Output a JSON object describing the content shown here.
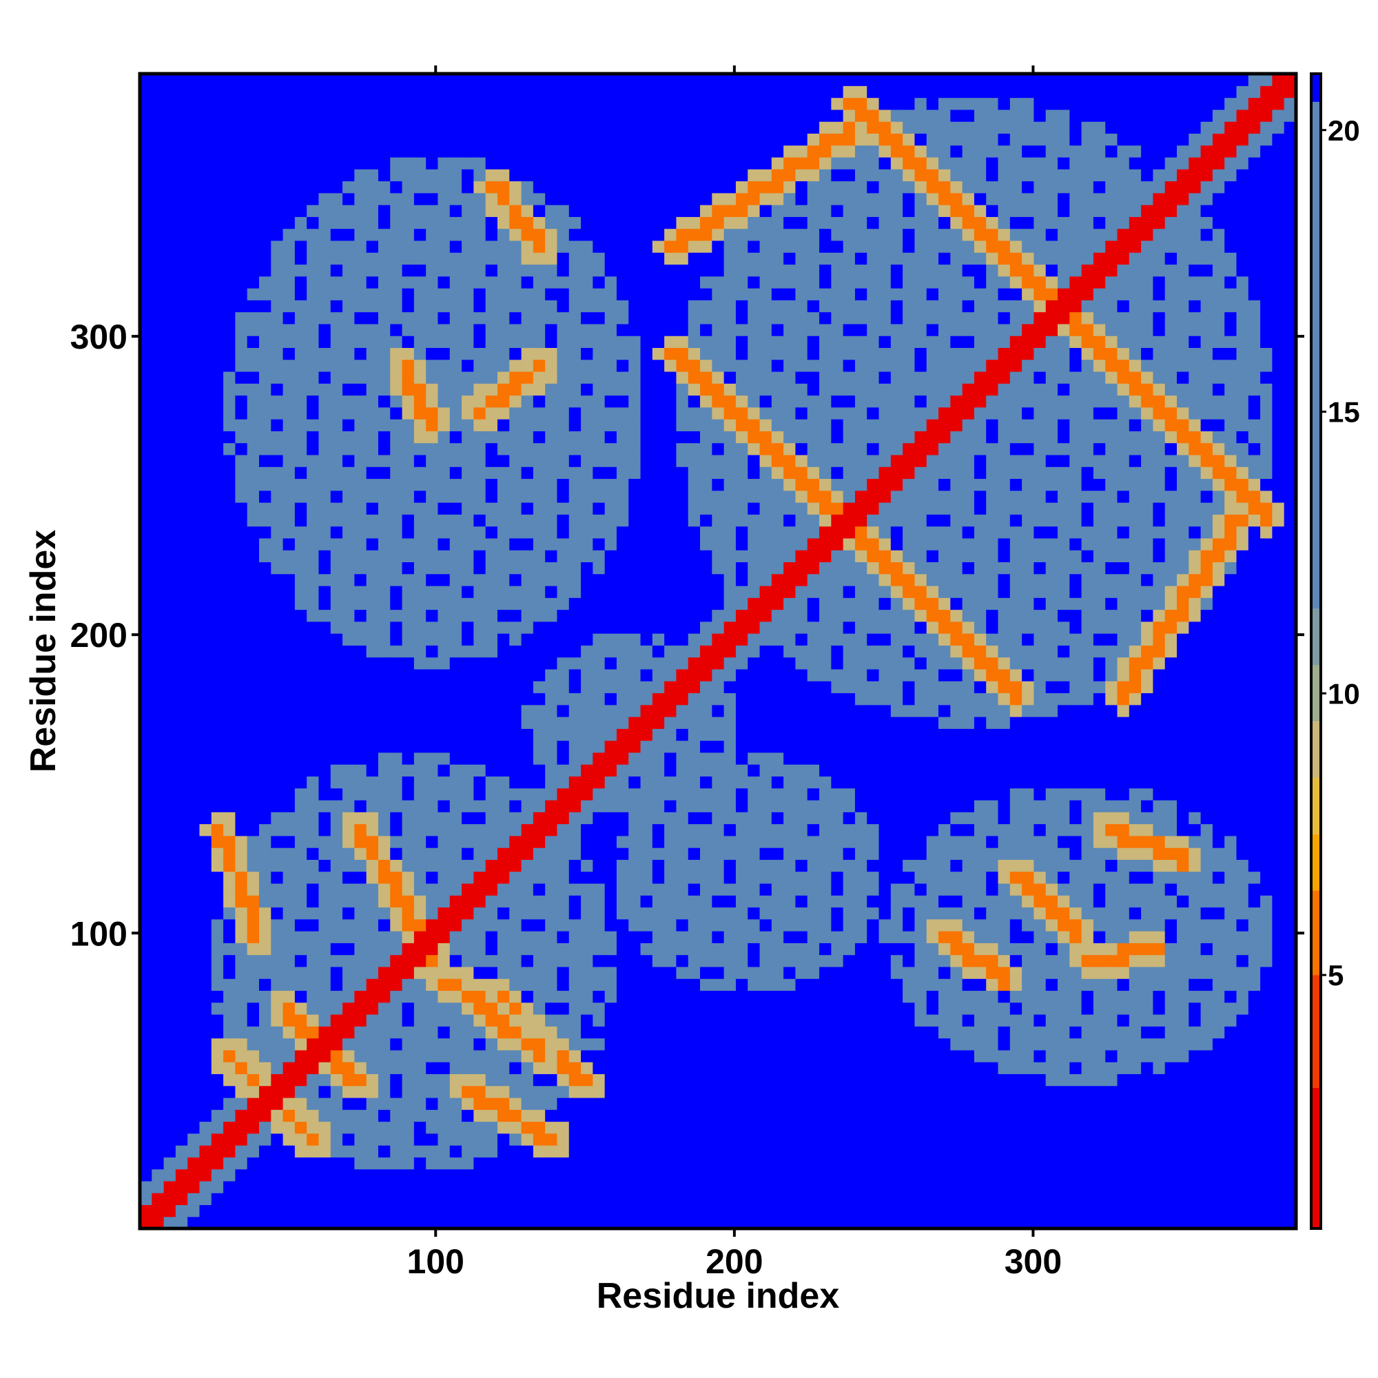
{
  "chart_data": {
    "type": "heatmap",
    "title": "",
    "xlabel": "Residue index",
    "ylabel": "Residue index",
    "xlim": [
      1,
      388
    ],
    "ylim": [
      1,
      388
    ],
    "x_ticks": [
      100,
      200,
      300
    ],
    "y_ticks": [
      100,
      200,
      300
    ],
    "x_tick_labels": [
      "100",
      "200",
      "300"
    ],
    "y_tick_labels": [
      "100",
      "200",
      "300"
    ],
    "grid": false,
    "colorbar": {
      "position": "right",
      "range": [
        0.5,
        21
      ],
      "ticks": [
        5,
        10,
        15,
        20
      ],
      "tick_labels": [
        "5",
        "10",
        "15",
        "20"
      ],
      "colors": [
        {
          "from": 0.5,
          "to": 3.0,
          "color": "#e80000"
        },
        {
          "from": 3.0,
          "to": 5.0,
          "color": "#f23a00"
        },
        {
          "from": 5.0,
          "to": 6.5,
          "color": "#f97400"
        },
        {
          "from": 6.5,
          "to": 7.5,
          "color": "#f6a500"
        },
        {
          "from": 7.5,
          "to": 8.5,
          "color": "#e7bb3c"
        },
        {
          "from": 8.5,
          "to": 9.5,
          "color": "#cbb779"
        },
        {
          "from": 9.5,
          "to": 10.5,
          "color": "#9fae8c"
        },
        {
          "from": 10.5,
          "to": 11.5,
          "color": "#7f9ca2"
        },
        {
          "from": 11.5,
          "to": 20.5,
          "color": "#5b88b7"
        },
        {
          "from": 20.5,
          "to": 21.0,
          "color": "#0000ff"
        }
      ]
    },
    "background_value": 21,
    "colors": {
      "far": "#0000ff",
      "mid": "#5b88b7",
      "near": "#e80000"
    },
    "features": {
      "diagonal": {
        "from": 1,
        "to": 388,
        "halfwidth": 4
      },
      "diagonal_mid_band": {
        "from": 1,
        "to": 388,
        "halfwidth": 10
      },
      "contact_lines": [
        {
          "x1": 30,
          "y1": 60,
          "x2": 60,
          "y2": 30
        },
        {
          "x1": 50,
          "y1": 74,
          "x2": 74,
          "y2": 50
        },
        {
          "x1": 28,
          "y1": 135,
          "x2": 40,
          "y2": 100
        },
        {
          "x1": 75,
          "y1": 135,
          "x2": 100,
          "y2": 90
        },
        {
          "x1": 100,
          "y1": 88,
          "x2": 135,
          "y2": 60
        },
        {
          "x1": 110,
          "y1": 48,
          "x2": 140,
          "y2": 30
        },
        {
          "x1": 120,
          "y1": 80,
          "x2": 150,
          "y2": 50
        },
        {
          "x1": 90,
          "y1": 290,
          "x2": 98,
          "y2": 270
        },
        {
          "x1": 120,
          "y1": 350,
          "x2": 135,
          "y2": 330
        },
        {
          "x1": 115,
          "y1": 275,
          "x2": 135,
          "y2": 290
        },
        {
          "x1": 180,
          "y1": 295,
          "x2": 295,
          "y2": 180
        },
        {
          "x1": 240,
          "y1": 378,
          "x2": 378,
          "y2": 240
        },
        {
          "x1": 180,
          "y1": 330,
          "x2": 240,
          "y2": 370
        },
        {
          "x1": 330,
          "y1": 180,
          "x2": 370,
          "y2": 240
        },
        {
          "x1": 270,
          "y1": 100,
          "x2": 290,
          "y2": 85
        },
        {
          "x1": 295,
          "y1": 120,
          "x2": 315,
          "y2": 100
        },
        {
          "x1": 325,
          "y1": 135,
          "x2": 350,
          "y2": 125
        },
        {
          "x1": 320,
          "y1": 90,
          "x2": 340,
          "y2": 95
        }
      ],
      "mid_regions": [
        {
          "x": [
            25,
            160
          ],
          "y": [
            20,
            160
          ]
        },
        {
          "x": [
            160,
            250
          ],
          "y": [
            80,
            160
          ]
        },
        {
          "x": [
            250,
            380
          ],
          "y": [
            50,
            150
          ]
        },
        {
          "x": [
            180,
            380
          ],
          "y": [
            170,
            380
          ]
        },
        {
          "x": [
            30,
            170
          ],
          "y": [
            190,
            360
          ]
        },
        {
          "x": [
            130,
            200
          ],
          "y": [
            140,
            200
          ]
        }
      ]
    }
  }
}
